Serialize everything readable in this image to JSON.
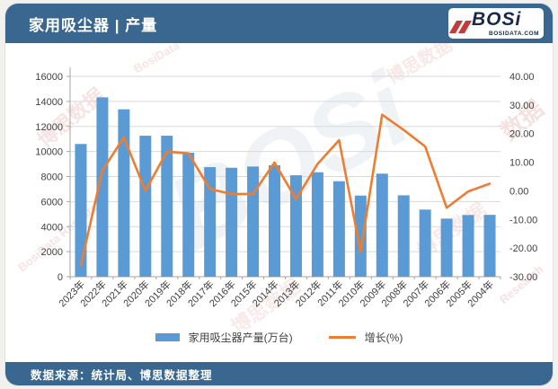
{
  "header": {
    "title": "家用吸尘器 | 产量",
    "logo": {
      "text": "BOSi",
      "domain": "BOSIDATA.COM"
    }
  },
  "footer": {
    "source": "数据来源：统计局、博思数据整理"
  },
  "watermarks": [
    "博思数据",
    "BosiData Research",
    "BOSi",
    "数据",
    "Research",
    "BosiData"
  ],
  "colors": {
    "header_blue": "#39678F",
    "bar_blue": "#5B9BD5",
    "line_orange": "#ED7D31",
    "grid": "#D9D9D9",
    "axis": "#A6A6A6",
    "logo_navy": "#16294B",
    "logo_red": "#C23C3C"
  },
  "chart_data": {
    "type": "bar",
    "subtype": "bar+line-combo",
    "categories": [
      "2023年",
      "2022年",
      "2021年",
      "2020年",
      "2019年",
      "2018年",
      "2017年",
      "2016年",
      "2015年",
      "2014年",
      "2013年",
      "2012年",
      "2011年",
      "2010年",
      "2009年",
      "2008年",
      "2007年",
      "2006年",
      "2005年",
      "2004年"
    ],
    "series": [
      {
        "name": "家用吸尘器产量(万台)",
        "type": "bar",
        "axis": "left",
        "values": [
          10600,
          14320,
          13370,
          11260,
          11260,
          9900,
          8750,
          8700,
          8800,
          8900,
          8100,
          8340,
          7625,
          6480,
          8230,
          6500,
          5360,
          4640,
          4930,
          4940
        ]
      },
      {
        "name": "增长(%)",
        "type": "line",
        "axis": "right",
        "values": [
          -26.0,
          7.1,
          18.7,
          0.0,
          13.7,
          13.1,
          0.6,
          -1.1,
          -1.1,
          9.9,
          -2.9,
          9.4,
          17.7,
          -21.3,
          26.6,
          21.3,
          15.5,
          -5.9,
          -0.2,
          2.5
        ]
      }
    ],
    "left_axis": {
      "min": 0,
      "max": 16000,
      "step": 2000,
      "ticks": [
        "16000",
        "14000",
        "12000",
        "10000",
        "8000",
        "6000",
        "4000",
        "2000",
        "0"
      ]
    },
    "right_axis": {
      "min": -30,
      "max": 40,
      "step": 10,
      "ticks": [
        "40.00",
        "30.00",
        "20.00",
        "10.00",
        "0.00",
        "-10.00",
        "-20.00",
        "-30.00"
      ]
    },
    "grid": true,
    "legend_position": "bottom",
    "x_label_rotation": -45
  }
}
